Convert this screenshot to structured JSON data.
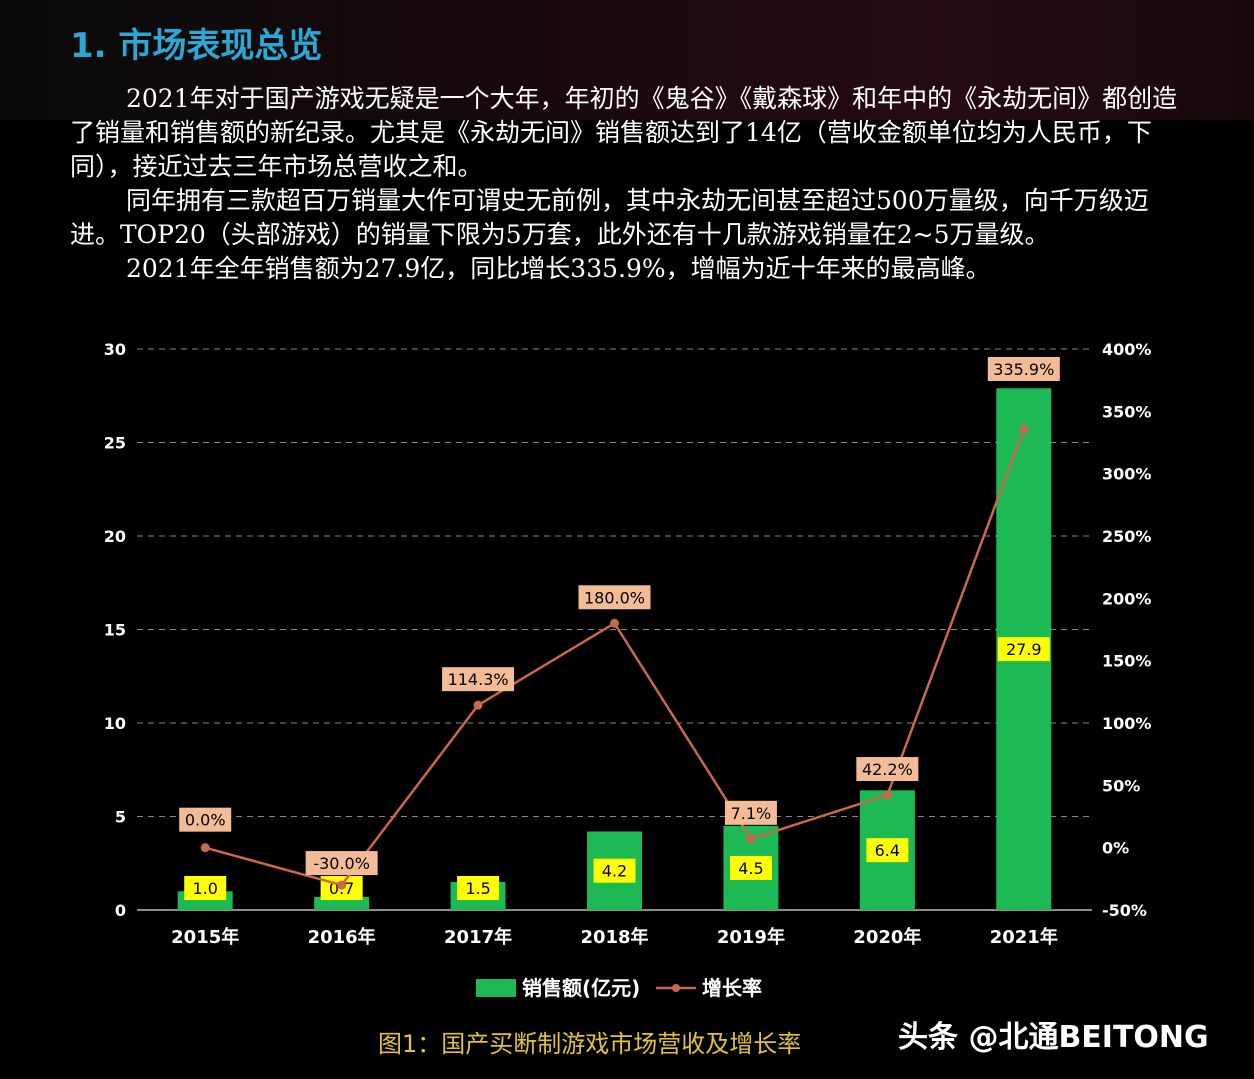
{
  "heading": "1. 市场表现总览",
  "paragraphs": [
    "2021年对于国产游戏无疑是一个大年，年初的《鬼谷》《戴森球》和年中的《永劫无间》都创造了销量和销售额的新纪录。尤其是《永劫无间》销售额达到了14亿（营收金额单位均为人民币，下同），接近过去三年市场总营收之和。",
    "同年拥有三款超百万销量大作可谓史无前例，其中永劫无间甚至超过500万量级，向千万级迈进。TOP20（头部游戏）的销量下限为5万套，此外还有十几款游戏销量在2~5万量级。",
    "2021年全年销售额为27.9亿，同比增长335.9%，增幅为近十年来的最高峰。"
  ],
  "caption": "图1：国产买断制游戏市场营收及增长率",
  "watermark": "头条 @北通BEITONG",
  "colors": {
    "bar": "#1db954",
    "line": "#c8694a",
    "bar_label_bg": "#ffff00",
    "line_label_bg": "#f4bc96",
    "title": "#2aa9d6",
    "caption": "#e3c23a"
  },
  "chart_data": {
    "type": "bar",
    "categories": [
      "2015年",
      "2016年",
      "2017年",
      "2018年",
      "2019年",
      "2020年",
      "2021年"
    ],
    "series": [
      {
        "name": "销售额(亿元)",
        "type": "bar",
        "axis": "left",
        "values": [
          1.0,
          0.7,
          1.5,
          4.2,
          4.5,
          6.4,
          27.9
        ],
        "labels": [
          "1.0",
          "0.7",
          "1.5",
          "4.2",
          "4.5",
          "6.4",
          "27.9"
        ]
      },
      {
        "name": "增长率",
        "type": "line",
        "axis": "right",
        "values": [
          0.0,
          -30.0,
          114.3,
          180.0,
          7.1,
          42.2,
          335.9
        ],
        "labels": [
          "0.0%",
          "-30.0%",
          "114.3%",
          "180.0%",
          "7.1%",
          "42.2%",
          "335.9%"
        ]
      }
    ],
    "y_left": {
      "min": 0,
      "max": 30,
      "ticks": [
        "0",
        "5",
        "10",
        "15",
        "20",
        "25",
        "30"
      ]
    },
    "y_right": {
      "min": -50,
      "max": 400,
      "ticks": [
        "-50%",
        "0%",
        "50%",
        "100%",
        "150%",
        "200%",
        "250%",
        "300%",
        "350%",
        "400%"
      ]
    },
    "grid": true,
    "legend_position": "bottom"
  }
}
